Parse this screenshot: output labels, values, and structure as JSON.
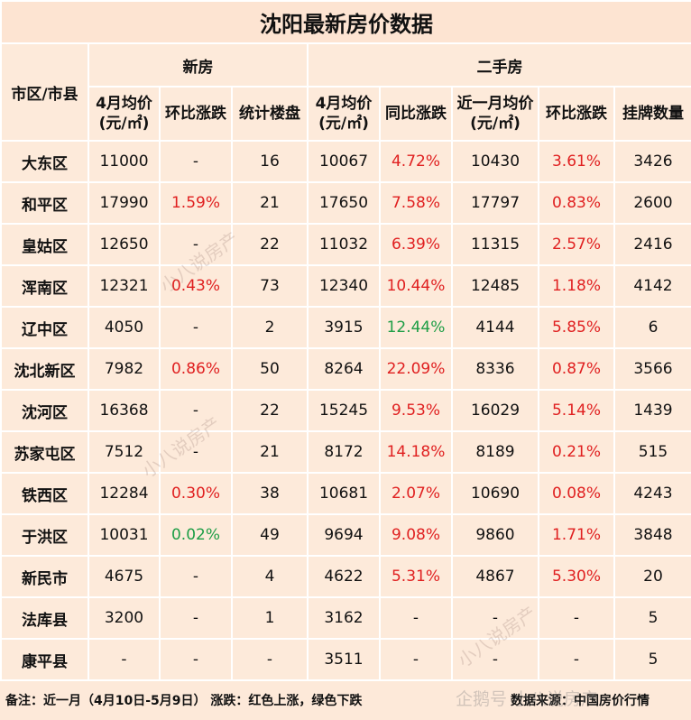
{
  "header": {
    "title": "沈阳最新房价数据"
  },
  "table": {
    "group_headers": [
      "市区/市县",
      "新房",
      "二手房"
    ],
    "column_headers": [
      "4月均价(元/㎡)",
      "环比涨跌",
      "统计楼盘",
      "4月均价(元/㎡)",
      "同比涨跌",
      "近一月均价(元/㎡)",
      "环比涨跌",
      "挂牌数量"
    ],
    "rows": [
      [
        "大东区",
        "11000",
        "-",
        "16",
        "10067",
        {
          "text": "4.72%",
          "color": "#e02020"
        },
        "10430",
        {
          "text": "3.61%",
          "color": "#e02020"
        },
        "3426"
      ],
      [
        "和平区",
        "17990",
        {
          "text": "1.59%",
          "color": "#e02020"
        },
        "21",
        "17650",
        {
          "text": "7.58%",
          "color": "#e02020"
        },
        "17797",
        {
          "text": "0.83%",
          "color": "#e02020"
        },
        "2600"
      ],
      [
        "皇姑区",
        "12650",
        "-",
        "22",
        "11032",
        {
          "text": "6.39%",
          "color": "#e02020"
        },
        "11315",
        {
          "text": "2.57%",
          "color": "#e02020"
        },
        "2416"
      ],
      [
        "浑南区",
        "12321",
        {
          "text": "0.43%",
          "color": "#e02020"
        },
        "73",
        "12340",
        {
          "text": "10.44%",
          "color": "#e02020"
        },
        "12485",
        {
          "text": "1.18%",
          "color": "#e02020"
        },
        "4142"
      ],
      [
        "辽中区",
        "4050",
        "-",
        "2",
        "3915",
        {
          "text": "12.44%",
          "color": "#1e9e46"
        },
        "4144",
        {
          "text": "5.85%",
          "color": "#e02020"
        },
        "6"
      ],
      [
        "沈北新区",
        "7982",
        {
          "text": "0.86%",
          "color": "#e02020"
        },
        "50",
        "8264",
        {
          "text": "22.09%",
          "color": "#e02020"
        },
        "8336",
        {
          "text": "0.87%",
          "color": "#e02020"
        },
        "3566"
      ],
      [
        "沈河区",
        "16368",
        "-",
        "22",
        "15245",
        {
          "text": "9.53%",
          "color": "#e02020"
        },
        "16029",
        {
          "text": "5.14%",
          "color": "#e02020"
        },
        "1439"
      ],
      [
        "苏家屯区",
        "7512",
        "-",
        "21",
        "8172",
        {
          "text": "14.18%",
          "color": "#e02020"
        },
        "8189",
        {
          "text": "0.21%",
          "color": "#e02020"
        },
        "515"
      ],
      [
        "铁西区",
        "12284",
        {
          "text": "0.30%",
          "color": "#e02020"
        },
        "38",
        "10681",
        {
          "text": "2.07%",
          "color": "#e02020"
        },
        "10690",
        {
          "text": "0.08%",
          "color": "#e02020"
        },
        "4243"
      ],
      [
        "于洪区",
        "10031",
        {
          "text": "0.02%",
          "color": "#1e9e46"
        },
        "49",
        "9694",
        {
          "text": "9.08%",
          "color": "#e02020"
        },
        "9860",
        {
          "text": "1.71%",
          "color": "#e02020"
        },
        "3848"
      ],
      [
        "新民市",
        "4675",
        "-",
        "4",
        "4622",
        {
          "text": "5.31%",
          "color": "#e02020"
        },
        "4867",
        {
          "text": "5.30%",
          "color": "#e02020"
        },
        "20"
      ],
      [
        "法库县",
        "3200",
        "-",
        "1",
        "3162",
        "-",
        "-",
        "-",
        "5"
      ],
      [
        "康平县",
        "-",
        "-",
        "-",
        "3511",
        "-",
        "-",
        "-",
        "5"
      ]
    ]
  },
  "footer": {
    "note": "备注：近一月（4月10日-5月9日）  涨跌：红色上涨，绿色下跌",
    "source": "数据来源：中国房价行情"
  },
  "watermarks": [
    "小八说房产",
    "企鹅号 小八说房产"
  ]
}
